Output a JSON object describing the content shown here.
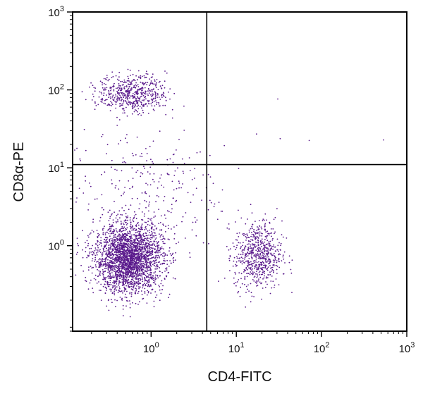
{
  "chart_data": {
    "type": "scatter",
    "subtype": "flow-cytometry-dot-plot",
    "title": "",
    "xlabel": "CD4-FITC",
    "ylabel": "CD8α-PE",
    "xscale": "log",
    "yscale": "log",
    "xlim": [
      0.12,
      1000
    ],
    "ylim": [
      0.08,
      1000
    ],
    "x_ticks": [
      {
        "value": 1,
        "base": "10",
        "exp": "0"
      },
      {
        "value": 10,
        "base": "10",
        "exp": "1"
      },
      {
        "value": 100,
        "base": "10",
        "exp": "2"
      },
      {
        "value": 1000,
        "base": "10",
        "exp": "3"
      }
    ],
    "y_ticks": [
      {
        "value": 1,
        "base": "10",
        "exp": "0"
      },
      {
        "value": 10,
        "base": "10",
        "exp": "1"
      },
      {
        "value": 100,
        "base": "10",
        "exp": "2"
      },
      {
        "value": 1000,
        "base": "10",
        "exp": "3"
      }
    ],
    "gates": {
      "x": 4.5,
      "y": 11
    },
    "point_color": "#5a1a8c",
    "grid": false,
    "legend": "none",
    "populations": [
      {
        "name": "",
        "center_x": 0.55,
        "center_y": 0.68,
        "spread_x_log": 0.2,
        "spread_y_log": 0.22,
        "count": 2600,
        "quadrant": "lower-left"
      },
      {
        "name": "",
        "center_x": 0.6,
        "center_y": 90,
        "spread_x_log": 0.2,
        "spread_y_log": 0.12,
        "count": 550,
        "quadrant": "upper-left"
      },
      {
        "name": "",
        "center_x": 18,
        "center_y": 0.75,
        "spread_x_log": 0.14,
        "spread_y_log": 0.22,
        "count": 650,
        "quadrant": "lower-right"
      },
      {
        "name": "",
        "center_x": 0.8,
        "center_y": 5,
        "spread_x_log": 0.45,
        "spread_y_log": 0.4,
        "count": 260,
        "quadrant": "scatter"
      },
      {
        "name": "",
        "center_x": 20,
        "center_y": 40,
        "spread_x_log": 0.6,
        "spread_y_log": 0.3,
        "count": 8,
        "quadrant": "upper-right"
      }
    ]
  }
}
